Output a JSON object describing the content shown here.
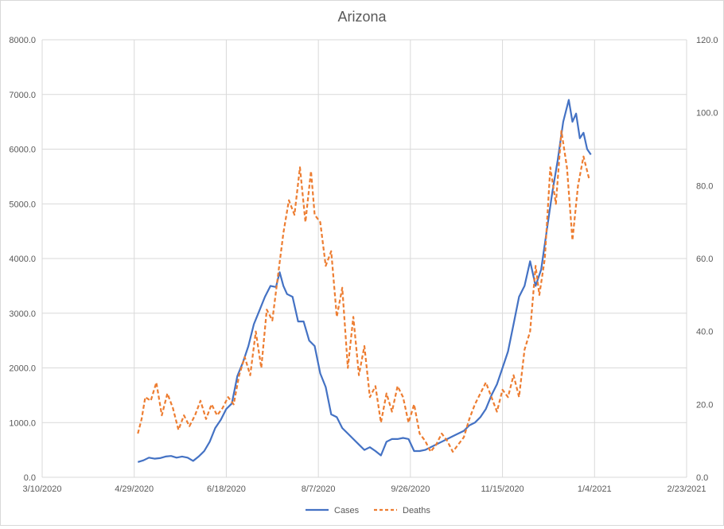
{
  "chart_data": {
    "type": "line",
    "title": "Arizona",
    "x_ticks": [
      "3/10/2020",
      "4/29/2020",
      "6/18/2020",
      "8/7/2020",
      "9/26/2020",
      "11/15/2020",
      "1/4/2021",
      "2/23/2021"
    ],
    "y_left": {
      "min": 0,
      "max": 8000,
      "ticks": [
        "0.0",
        "1000.0",
        "2000.0",
        "3000.0",
        "4000.0",
        "5000.0",
        "6000.0",
        "7000.0",
        "8000.0"
      ]
    },
    "y_right": {
      "min": 0,
      "max": 120,
      "ticks": [
        "0.0",
        "20.0",
        "40.0",
        "60.0",
        "80.0",
        "100.0",
        "120.0"
      ]
    },
    "grid": true,
    "legend_position": "bottom",
    "series": [
      {
        "name": "Cases",
        "axis": "left",
        "color": "#4472c4",
        "style": "solid",
        "points": [
          [
            "5/1/2020",
            280
          ],
          [
            "5/4/2020",
            310
          ],
          [
            "5/7/2020",
            360
          ],
          [
            "5/10/2020",
            340
          ],
          [
            "5/13/2020",
            350
          ],
          [
            "5/16/2020",
            380
          ],
          [
            "5/19/2020",
            390
          ],
          [
            "5/22/2020",
            360
          ],
          [
            "5/25/2020",
            380
          ],
          [
            "5/28/2020",
            360
          ],
          [
            "5/31/2020",
            300
          ],
          [
            "6/3/2020",
            380
          ],
          [
            "6/6/2020",
            480
          ],
          [
            "6/9/2020",
            650
          ],
          [
            "6/12/2020",
            900
          ],
          [
            "6/15/2020",
            1050
          ],
          [
            "6/18/2020",
            1250
          ],
          [
            "6/21/2020",
            1350
          ],
          [
            "6/24/2020",
            1850
          ],
          [
            "6/27/2020",
            2100
          ],
          [
            "6/30/2020",
            2400
          ],
          [
            "7/3/2020",
            2800
          ],
          [
            "7/6/2020",
            3050
          ],
          [
            "7/9/2020",
            3300
          ],
          [
            "7/12/2020",
            3500
          ],
          [
            "7/15/2020",
            3480
          ],
          [
            "7/17/2020",
            3750
          ],
          [
            "7/19/2020",
            3500
          ],
          [
            "7/21/2020",
            3350
          ],
          [
            "7/24/2020",
            3300
          ],
          [
            "7/27/2020",
            2850
          ],
          [
            "7/30/2020",
            2850
          ],
          [
            "8/2/2020",
            2500
          ],
          [
            "8/5/2020",
            2400
          ],
          [
            "8/8/2020",
            1900
          ],
          [
            "8/11/2020",
            1650
          ],
          [
            "8/14/2020",
            1150
          ],
          [
            "8/17/2020",
            1100
          ],
          [
            "8/20/2020",
            900
          ],
          [
            "8/23/2020",
            800
          ],
          [
            "8/26/2020",
            700
          ],
          [
            "8/29/2020",
            600
          ],
          [
            "9/1/2020",
            500
          ],
          [
            "9/4/2020",
            550
          ],
          [
            "9/7/2020",
            480
          ],
          [
            "9/10/2020",
            400
          ],
          [
            "9/13/2020",
            650
          ],
          [
            "9/16/2020",
            700
          ],
          [
            "9/19/2020",
            700
          ],
          [
            "9/22/2020",
            720
          ],
          [
            "9/25/2020",
            700
          ],
          [
            "9/28/2020",
            480
          ],
          [
            "10/1/2020",
            480
          ],
          [
            "10/4/2020",
            500
          ],
          [
            "10/7/2020",
            550
          ],
          [
            "10/10/2020",
            600
          ],
          [
            "10/13/2020",
            650
          ],
          [
            "10/16/2020",
            700
          ],
          [
            "10/19/2020",
            750
          ],
          [
            "10/22/2020",
            800
          ],
          [
            "10/25/2020",
            850
          ],
          [
            "10/28/2020",
            950
          ],
          [
            "10/31/2020",
            1000
          ],
          [
            "11/3/2020",
            1100
          ],
          [
            "11/6/2020",
            1250
          ],
          [
            "11/9/2020",
            1500
          ],
          [
            "11/12/2020",
            1700
          ],
          [
            "11/15/2020",
            2000
          ],
          [
            "11/18/2020",
            2300
          ],
          [
            "11/21/2020",
            2800
          ],
          [
            "11/24/2020",
            3300
          ],
          [
            "11/27/2020",
            3500
          ],
          [
            "11/30/2020",
            3950
          ],
          [
            "12/3/2020",
            3500
          ],
          [
            "12/6/2020",
            3800
          ],
          [
            "12/9/2020",
            4500
          ],
          [
            "12/12/2020",
            5200
          ],
          [
            "12/15/2020",
            5800
          ],
          [
            "12/18/2020",
            6500
          ],
          [
            "12/21/2020",
            6900
          ],
          [
            "12/23/2020",
            6500
          ],
          [
            "12/25/2020",
            6650
          ],
          [
            "12/27/2020",
            6200
          ],
          [
            "12/29/2020",
            6300
          ],
          [
            "12/31/2020",
            6000
          ],
          [
            "1/2/2021",
            5900
          ]
        ]
      },
      {
        "name": "Deaths",
        "axis": "right",
        "color": "#ed7d31",
        "style": "dashed",
        "points": [
          [
            "5/1/2020",
            12
          ],
          [
            "5/3/2020",
            16
          ],
          [
            "5/5/2020",
            22
          ],
          [
            "5/8/2020",
            21
          ],
          [
            "5/11/2020",
            26
          ],
          [
            "5/14/2020",
            17
          ],
          [
            "5/17/2020",
            23
          ],
          [
            "5/20/2020",
            19
          ],
          [
            "5/23/2020",
            13
          ],
          [
            "5/26/2020",
            17
          ],
          [
            "5/29/2020",
            14
          ],
          [
            "6/1/2020",
            17
          ],
          [
            "6/4/2020",
            21
          ],
          [
            "6/7/2020",
            16
          ],
          [
            "6/10/2020",
            20
          ],
          [
            "6/13/2020",
            17
          ],
          [
            "6/16/2020",
            19
          ],
          [
            "6/19/2020",
            22
          ],
          [
            "6/22/2020",
            20
          ],
          [
            "6/25/2020",
            28
          ],
          [
            "6/28/2020",
            33
          ],
          [
            "7/1/2020",
            28
          ],
          [
            "7/4/2020",
            40
          ],
          [
            "7/7/2020",
            30
          ],
          [
            "7/10/2020",
            46
          ],
          [
            "7/13/2020",
            43
          ],
          [
            "7/16/2020",
            55
          ],
          [
            "7/19/2020",
            67
          ],
          [
            "7/22/2020",
            76
          ],
          [
            "7/25/2020",
            72
          ],
          [
            "7/28/2020",
            85
          ],
          [
            "7/31/2020",
            70
          ],
          [
            "8/3/2020",
            84
          ],
          [
            "8/5/2020",
            72
          ],
          [
            "8/8/2020",
            70
          ],
          [
            "8/11/2020",
            58
          ],
          [
            "8/14/2020",
            62
          ],
          [
            "8/17/2020",
            44
          ],
          [
            "8/20/2020",
            52
          ],
          [
            "8/23/2020",
            30
          ],
          [
            "8/26/2020",
            44
          ],
          [
            "8/29/2020",
            28
          ],
          [
            "9/1/2020",
            36
          ],
          [
            "9/4/2020",
            22
          ],
          [
            "9/7/2020",
            25
          ],
          [
            "9/10/2020",
            15
          ],
          [
            "9/13/2020",
            23
          ],
          [
            "9/16/2020",
            18
          ],
          [
            "9/19/2020",
            25
          ],
          [
            "9/22/2020",
            22
          ],
          [
            "9/25/2020",
            15
          ],
          [
            "9/28/2020",
            20
          ],
          [
            "10/1/2020",
            12
          ],
          [
            "10/4/2020",
            10
          ],
          [
            "10/7/2020",
            7
          ],
          [
            "10/10/2020",
            9
          ],
          [
            "10/13/2020",
            12
          ],
          [
            "10/16/2020",
            10
          ],
          [
            "10/19/2020",
            7
          ],
          [
            "10/22/2020",
            9
          ],
          [
            "10/25/2020",
            11
          ],
          [
            "10/28/2020",
            16
          ],
          [
            "10/31/2020",
            20
          ],
          [
            "11/3/2020",
            23
          ],
          [
            "11/6/2020",
            26
          ],
          [
            "11/9/2020",
            22
          ],
          [
            "11/12/2020",
            18
          ],
          [
            "11/15/2020",
            24
          ],
          [
            "11/18/2020",
            22
          ],
          [
            "11/21/2020",
            28
          ],
          [
            "11/24/2020",
            22
          ],
          [
            "11/27/2020",
            35
          ],
          [
            "11/30/2020",
            40
          ],
          [
            "12/3/2020",
            58
          ],
          [
            "12/5/2020",
            50
          ],
          [
            "12/8/2020",
            60
          ],
          [
            "12/11/2020",
            85
          ],
          [
            "12/14/2020",
            75
          ],
          [
            "12/17/2020",
            95
          ],
          [
            "12/20/2020",
            85
          ],
          [
            "12/23/2020",
            65
          ],
          [
            "12/26/2020",
            80
          ],
          [
            "12/29/2020",
            88
          ],
          [
            "1/1/2021",
            82
          ]
        ]
      }
    ]
  }
}
